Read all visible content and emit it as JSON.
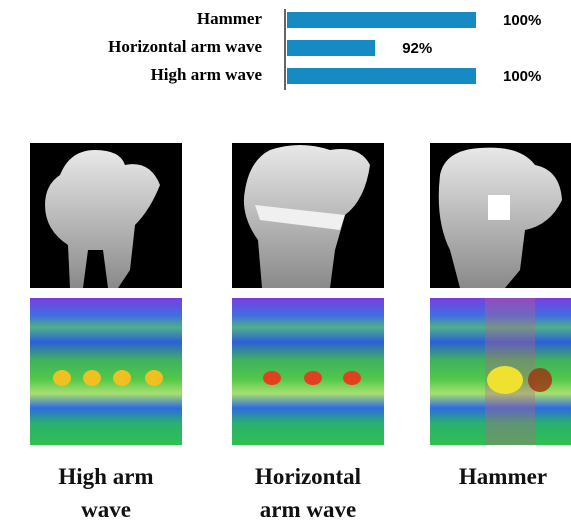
{
  "chart_data": {
    "type": "bar",
    "orientation": "horizontal",
    "categories": [
      "Hammer",
      "Horizontal arm wave",
      "High arm wave"
    ],
    "values": [
      100,
      92,
      100
    ],
    "value_labels": [
      "100%",
      "92%",
      "100%"
    ],
    "color": "#168ac2",
    "xlim": [
      85,
      100
    ]
  },
  "figure": {
    "captions": [
      "High arm wave",
      "Horizontal arm wave",
      "Hammer"
    ]
  }
}
